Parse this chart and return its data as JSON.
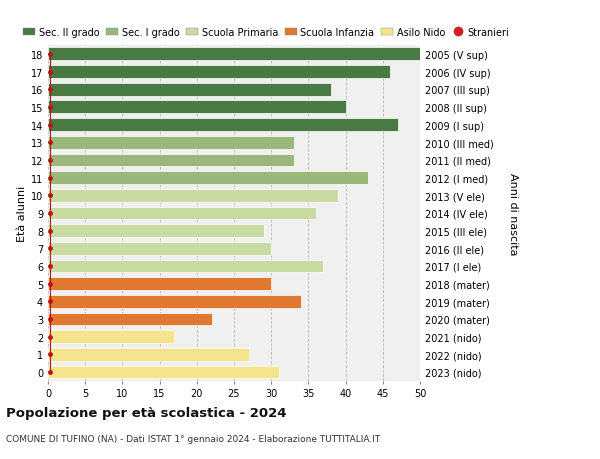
{
  "ages": [
    0,
    1,
    2,
    3,
    4,
    5,
    6,
    7,
    8,
    9,
    10,
    11,
    12,
    13,
    14,
    15,
    16,
    17,
    18
  ],
  "values": [
    31,
    27,
    17,
    22,
    34,
    30,
    37,
    30,
    29,
    36,
    39,
    43,
    33,
    33,
    47,
    40,
    38,
    46,
    51
  ],
  "right_labels": [
    "2023 (nido)",
    "2022 (nido)",
    "2021 (nido)",
    "2020 (mater)",
    "2019 (mater)",
    "2018 (mater)",
    "2017 (I ele)",
    "2016 (II ele)",
    "2015 (III ele)",
    "2014 (IV ele)",
    "2013 (V ele)",
    "2012 (I med)",
    "2011 (II med)",
    "2010 (III med)",
    "2009 (I sup)",
    "2008 (II sup)",
    "2007 (III sup)",
    "2006 (IV sup)",
    "2005 (V sup)"
  ],
  "bar_colors": [
    "#f5e48c",
    "#f5e48c",
    "#f5e48c",
    "#e07830",
    "#e07830",
    "#e07830",
    "#c8dba0",
    "#c8dba0",
    "#c8dba0",
    "#c8dba0",
    "#c8dba0",
    "#9ab87a",
    "#9ab87a",
    "#9ab87a",
    "#4a7a44",
    "#4a7a44",
    "#4a7a44",
    "#4a7a44",
    "#4a7a44"
  ],
  "legend_labels": [
    "Sec. II grado",
    "Sec. I grado",
    "Scuola Primaria",
    "Scuola Infanzia",
    "Asilo Nido",
    "Stranieri"
  ],
  "legend_colors": [
    "#4a7a44",
    "#9ab87a",
    "#c8dba0",
    "#e07830",
    "#f5e48c",
    "#cc2222"
  ],
  "title_bold": "Popolazione per età scolastica - 2024",
  "subtitle": "COMUNE DI TUFINO (NA) - Dati ISTAT 1° gennaio 2024 - Elaborazione TUTTITALIA.IT",
  "ylabel_left": "Età alunni",
  "ylabel_right": "Anni di nascita",
  "xlim": [
    0,
    50
  ],
  "xticks": [
    0,
    5,
    10,
    15,
    20,
    25,
    30,
    35,
    40,
    45,
    50
  ],
  "background_color": "#ffffff",
  "plot_bg_color": "#f0f0f0"
}
